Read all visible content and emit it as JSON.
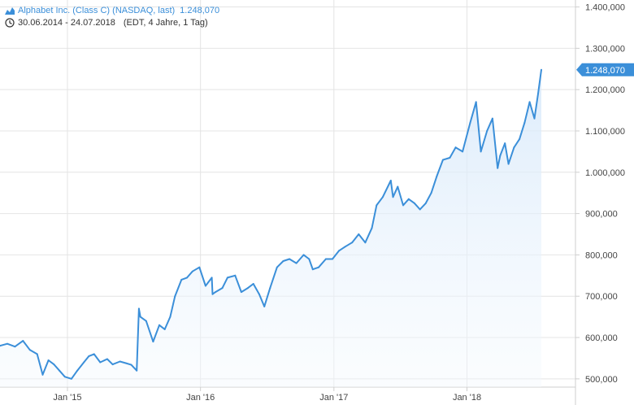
{
  "header": {
    "name": "Alphabet Inc. (Class C) (NASDAQ, last)",
    "last_value": "1.248,070",
    "date_range": "30.06.2014 - 24.07.2018",
    "meta": "(EDT, 4 Jahre, 1 Tag)"
  },
  "colors": {
    "line": "#3b8fd9",
    "fill_top": "#d6e8fa",
    "grid": "#e4e4e4",
    "tick_text": "#444444",
    "badge": "#3b8fd9"
  },
  "icons": {
    "series": "mountain-chart-icon",
    "time": "clock-icon"
  },
  "chart_data": {
    "type": "area",
    "title": "",
    "xlabel": "",
    "ylabel": "",
    "grid": true,
    "y_axis_position": "right",
    "x_range": [
      "2014-06-30",
      "2018-07-24"
    ],
    "ylim": [
      480000,
      1420000
    ],
    "yticks": [
      500000,
      600000,
      700000,
      800000,
      900000,
      1000000,
      1100000,
      1200000,
      1300000,
      1400000
    ],
    "ytick_labels": [
      "500,000",
      "600,000",
      "700,000",
      "800,000",
      "900,000",
      "1.000,000",
      "1.100,000",
      "1.200,000",
      "1.300,000",
      "1.400,000"
    ],
    "xticks": [
      {
        "date": "2015-01-01",
        "label": "Jan '15"
      },
      {
        "date": "2016-01-01",
        "label": "Jan '16"
      },
      {
        "date": "2017-01-01",
        "label": "Jan '17"
      },
      {
        "date": "2018-01-01",
        "label": "Jan '18"
      }
    ],
    "last_value_label": "1.248,070",
    "last_value": 1248070,
    "series": [
      {
        "x": [
          "2014-06-30",
          "2014-07-20",
          "2014-08-10",
          "2014-09-01",
          "2014-09-20",
          "2014-10-10",
          "2014-10-25",
          "2014-11-10",
          "2014-11-25",
          "2014-12-10",
          "2014-12-25",
          "2015-01-12",
          "2015-01-28",
          "2015-02-15",
          "2015-03-01",
          "2015-03-15",
          "2015-04-01",
          "2015-04-20",
          "2015-05-05",
          "2015-05-25",
          "2015-06-10",
          "2015-06-25",
          "2015-07-10",
          "2015-07-16",
          "2015-07-20",
          "2015-08-05",
          "2015-08-24",
          "2015-09-10",
          "2015-09-25",
          "2015-10-10",
          "2015-10-23",
          "2015-11-10",
          "2015-11-25",
          "2015-12-10",
          "2015-12-29",
          "2016-01-15",
          "2016-02-01",
          "2016-02-03",
          "2016-02-11",
          "2016-03-01",
          "2016-03-15",
          "2016-04-05",
          "2016-04-22",
          "2016-05-10",
          "2016-05-25",
          "2016-06-10",
          "2016-06-24",
          "2016-07-10",
          "2016-07-29",
          "2016-08-15",
          "2016-09-01",
          "2016-09-20",
          "2016-10-10",
          "2016-10-25",
          "2016-11-04",
          "2016-11-20",
          "2016-12-10",
          "2016-12-28",
          "2017-01-15",
          "2017-02-01",
          "2017-02-20",
          "2017-03-10",
          "2017-03-28",
          "2017-04-15",
          "2017-04-28",
          "2017-05-15",
          "2017-06-06",
          "2017-06-12",
          "2017-06-25",
          "2017-07-10",
          "2017-07-25",
          "2017-08-10",
          "2017-08-25",
          "2017-09-10",
          "2017-09-25",
          "2017-10-10",
          "2017-10-27",
          "2017-11-15",
          "2017-12-01",
          "2017-12-20",
          "2018-01-10",
          "2018-01-26",
          "2018-02-08",
          "2018-02-25",
          "2018-03-12",
          "2018-03-26",
          "2018-04-02",
          "2018-04-15",
          "2018-04-25",
          "2018-05-10",
          "2018-05-25",
          "2018-06-08",
          "2018-06-22",
          "2018-07-05",
          "2018-07-15",
          "2018-07-24"
        ],
        "y": [
          580000,
          585000,
          578000,
          592000,
          570000,
          560000,
          510000,
          545000,
          535000,
          520000,
          505000,
          500000,
          520000,
          540000,
          555000,
          560000,
          540000,
          548000,
          535000,
          542000,
          538000,
          534000,
          520000,
          670000,
          650000,
          640000,
          590000,
          630000,
          620000,
          650000,
          700000,
          740000,
          745000,
          760000,
          770000,
          725000,
          745000,
          705000,
          710000,
          720000,
          745000,
          750000,
          710000,
          720000,
          730000,
          705000,
          675000,
          720000,
          770000,
          785000,
          790000,
          780000,
          800000,
          790000,
          765000,
          770000,
          790000,
          790000,
          810000,
          820000,
          830000,
          850000,
          830000,
          865000,
          920000,
          940000,
          980000,
          940000,
          965000,
          920000,
          935000,
          925000,
          910000,
          925000,
          950000,
          990000,
          1030000,
          1035000,
          1060000,
          1050000,
          1120000,
          1170000,
          1050000,
          1100000,
          1130000,
          1010000,
          1040000,
          1070000,
          1020000,
          1060000,
          1080000,
          1120000,
          1170000,
          1130000,
          1190000,
          1248070
        ]
      }
    ]
  }
}
